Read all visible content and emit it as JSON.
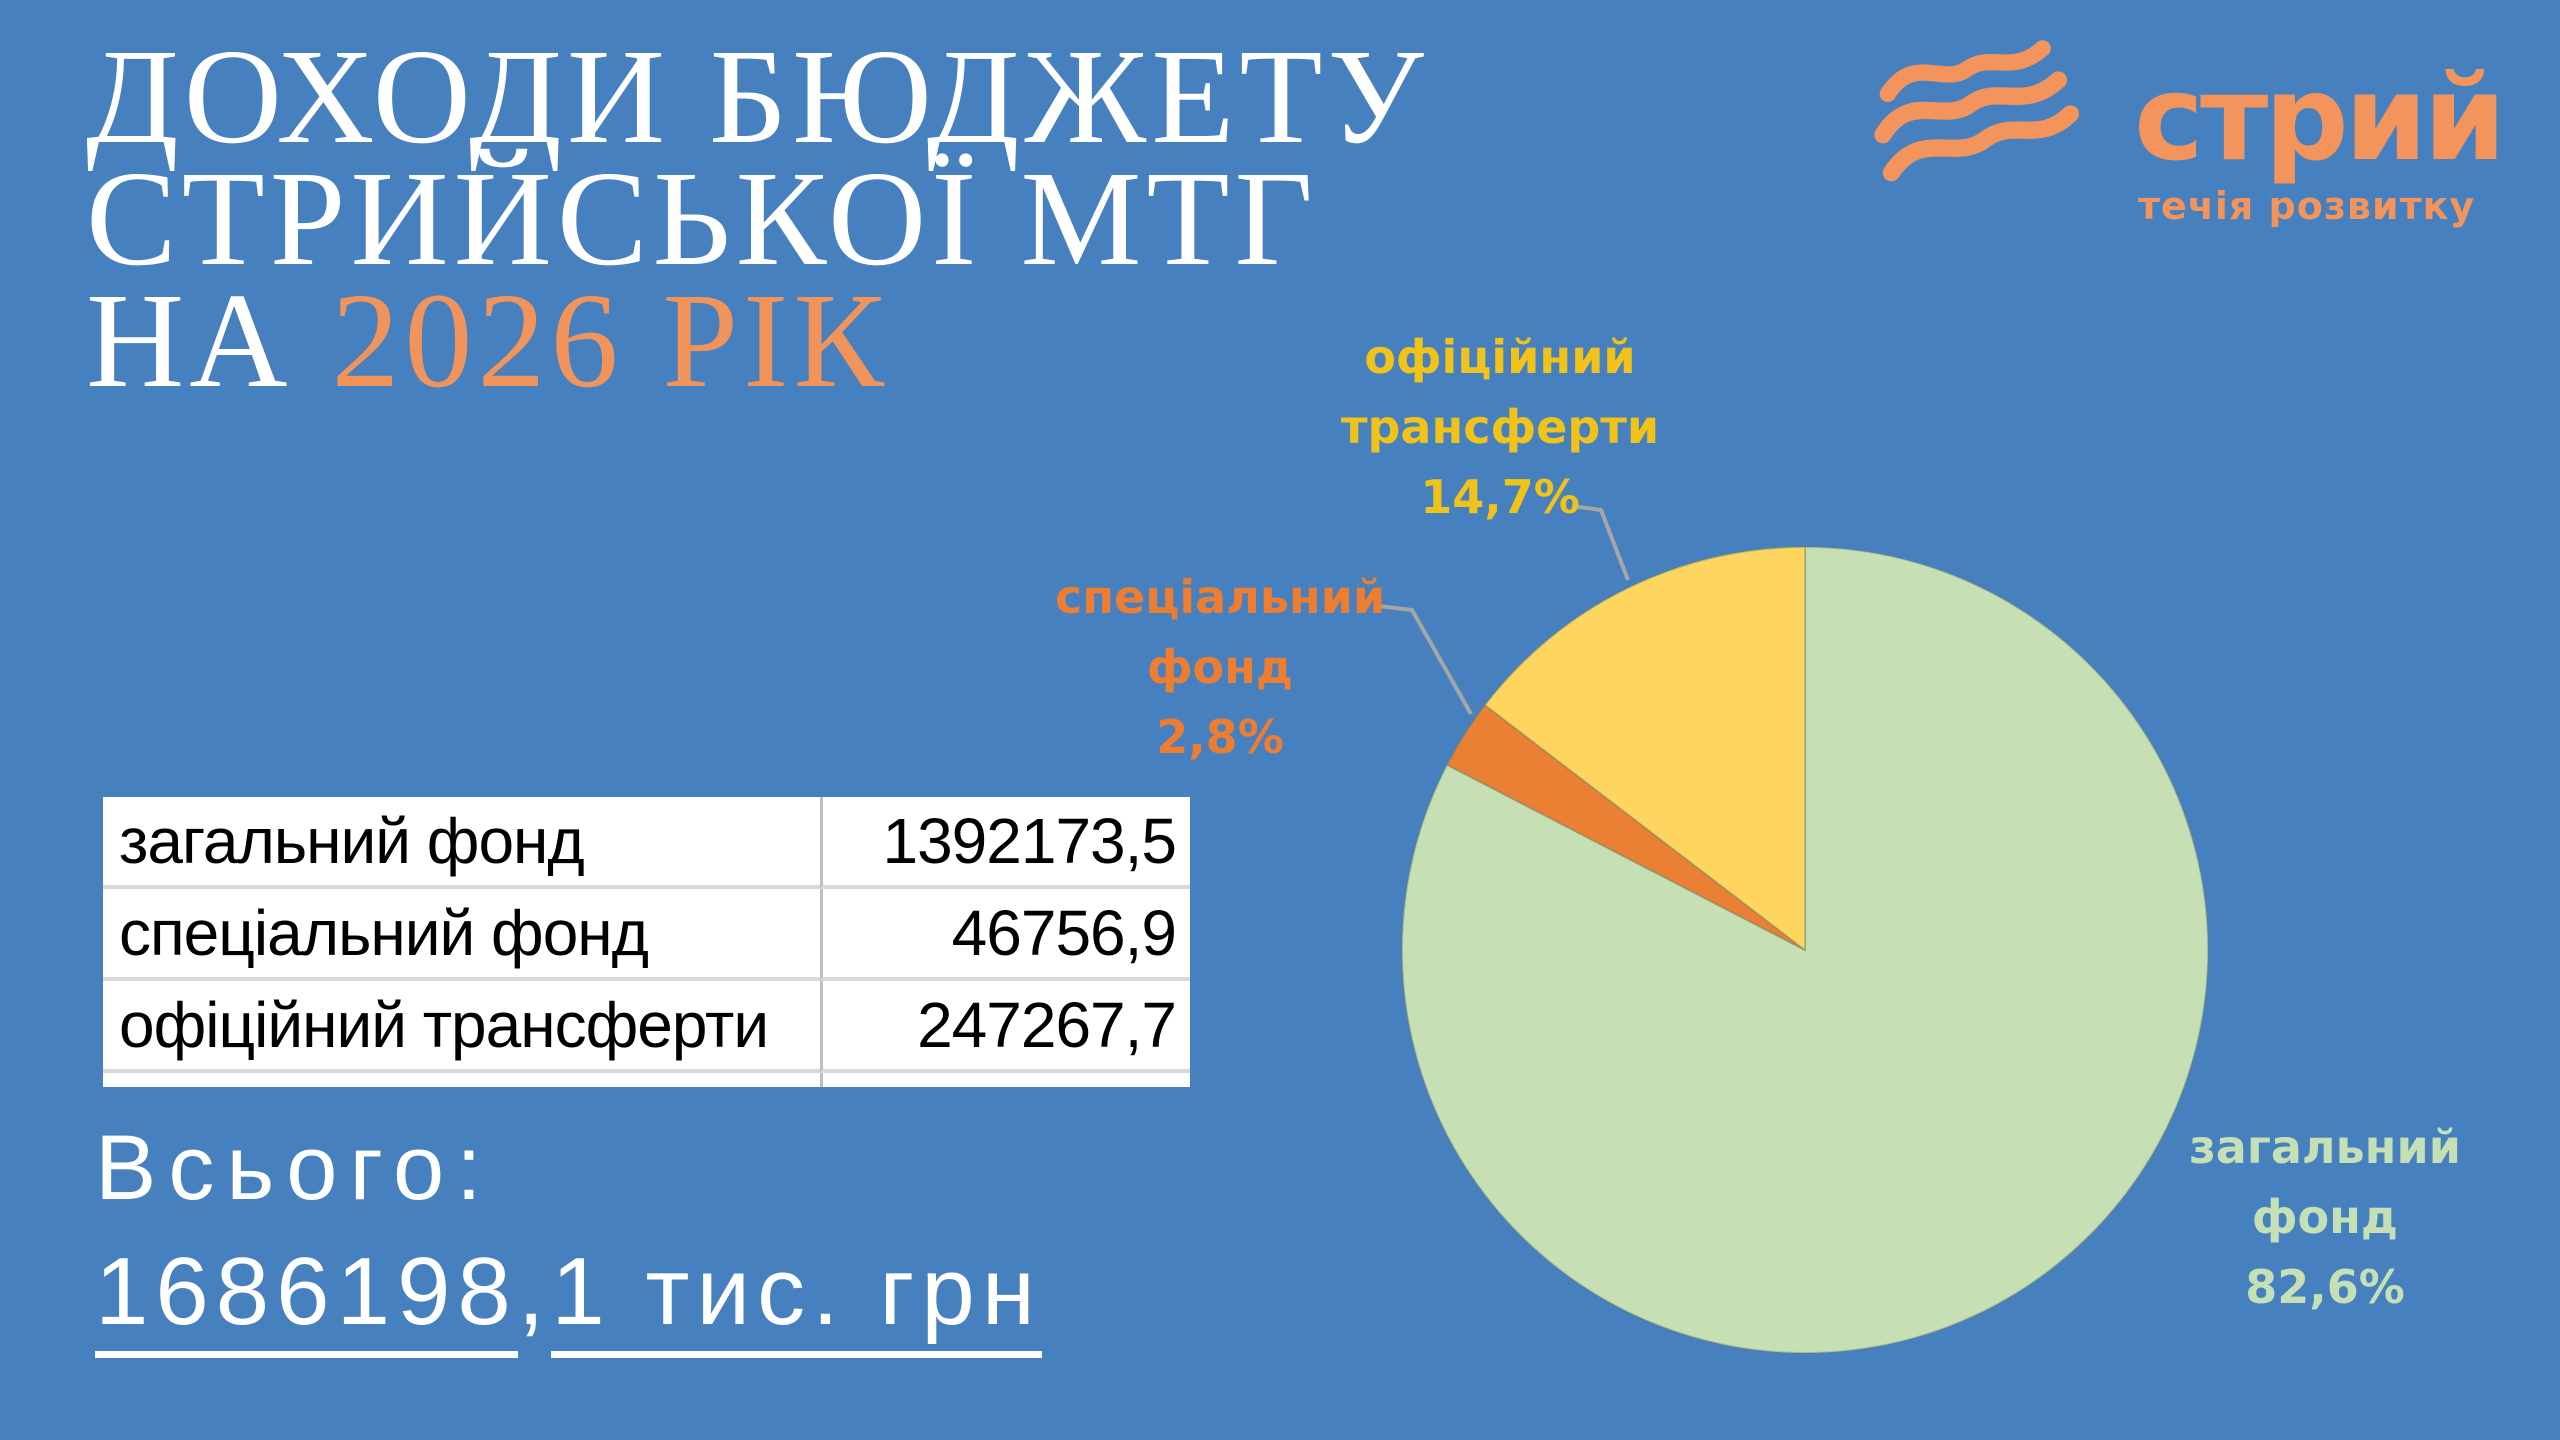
{
  "slide_title": {
    "line1": "ДОХОДИ БЮДЖЕТУ",
    "line2": "СТРИЙСЬКОЇ МТГ",
    "line3_prefix": "НА ",
    "line3_accent": "2026 РІК"
  },
  "logo": {
    "name": "стрий",
    "tagline": "течія розвитку",
    "color": "#F2945B"
  },
  "table": {
    "rows": [
      {
        "label": "загальний фонд",
        "value": "1392173,5"
      },
      {
        "label": "спеціальний фонд",
        "value": "46756,9"
      },
      {
        "label": "офіційний трансферти",
        "value": "247267,7"
      }
    ]
  },
  "total": {
    "label": "Всього:",
    "value_part1": "1686198",
    "separator": ",",
    "value_part2": "1 тис. грн"
  },
  "colors": {
    "background": "#4680BE",
    "title_accent": "#F0945C",
    "leader_gray": "#A6A6A6"
  },
  "chart_data": {
    "type": "pie",
    "title": "",
    "slices": [
      {
        "label": "загальний фонд",
        "percent": 82.6,
        "percent_label": "82,6%",
        "value": 1392173.5,
        "color": "#C7DFB5",
        "label_color": "#C5E0B4"
      },
      {
        "label": "спеціальний фонд",
        "percent": 2.8,
        "percent_label": "2,8%",
        "value": 46756.9,
        "color": "#EA8033",
        "label_color": "#ED7D31"
      },
      {
        "label": "офіційний трансферти",
        "percent": 14.7,
        "percent_label": "14,7%",
        "value": 247267.7,
        "color": "#FDD55F",
        "label_color": "#EFC319"
      }
    ],
    "start_angle_deg": 0,
    "direction": "clockwise",
    "legend_position": "outside-labels",
    "units": "тис. грн"
  }
}
